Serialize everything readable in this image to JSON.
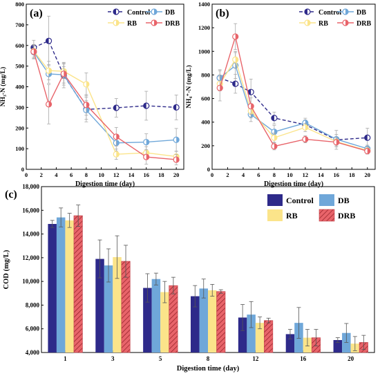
{
  "colors": {
    "control": "#2e2a8a",
    "db": "#6fa7d9",
    "rb": "#fbe48a",
    "drb": "#e8646a",
    "error": "#a8a8a8"
  },
  "chart_data": [
    {
      "panel_label": "(a)",
      "type": "line",
      "xlabel": "Digestion time (day)",
      "ylabel": "NH₃-N (mg/L)",
      "xlim": [
        0,
        21
      ],
      "ylim": [
        0,
        800
      ],
      "xticks": [
        "0",
        "2",
        "4",
        "6",
        "8",
        "10",
        "12",
        "14",
        "16",
        "18",
        "20"
      ],
      "yticks": [
        "0",
        "100",
        "200",
        "300",
        "400",
        "500",
        "600",
        "700",
        "800"
      ],
      "legend": [
        "Control",
        "DB",
        "RB",
        "DRB"
      ],
      "series": [
        {
          "name": "Control",
          "color": "#2e2a8a",
          "dashed": true,
          "x": [
            1,
            3,
            5,
            8,
            12,
            16,
            20
          ],
          "y": [
            590,
            622,
            455,
            290,
            298,
            308,
            300
          ],
          "err": [
            35,
            120,
            60,
            60,
            45,
            70,
            60
          ]
        },
        {
          "name": "DB",
          "color": "#6fa7d9",
          "dashed": false,
          "x": [
            1,
            3,
            5,
            8,
            12,
            16,
            20
          ],
          "y": [
            568,
            462,
            458,
            287,
            128,
            132,
            143
          ],
          "err": [
            30,
            45,
            40,
            45,
            40,
            40,
            55
          ]
        },
        {
          "name": "RB",
          "color": "#fbe48a",
          "dashed": false,
          "x": [
            1,
            3,
            5,
            8,
            12,
            16,
            20
          ],
          "y": [
            573,
            478,
            475,
            412,
            73,
            80,
            62
          ],
          "err": [
            30,
            45,
            35,
            55,
            25,
            30,
            25
          ]
        },
        {
          "name": "DRB",
          "color": "#e8646a",
          "dashed": false,
          "x": [
            1,
            3,
            5,
            8,
            12,
            16,
            20
          ],
          "y": [
            570,
            315,
            463,
            312,
            158,
            60,
            47
          ],
          "err": [
            35,
            95,
            55,
            50,
            45,
            35,
            25
          ]
        }
      ]
    },
    {
      "panel_label": "(b)",
      "type": "line",
      "xlabel": "Digestion time (day)",
      "ylabel": "NH₄⁺-N (mg/L)",
      "xlim": [
        0,
        21
      ],
      "ylim": [
        0,
        1400
      ],
      "xticks": [
        "0",
        "2",
        "4",
        "6",
        "8",
        "10",
        "12",
        "14",
        "16",
        "18",
        "20"
      ],
      "yticks": [
        "0",
        "200",
        "400",
        "600",
        "800",
        "1000",
        "1200",
        "1400"
      ],
      "legend": [
        "Control",
        "DB",
        "RB",
        "DRB"
      ],
      "series": [
        {
          "name": "Control",
          "color": "#2e2a8a",
          "dashed": true,
          "x": [
            1,
            3,
            5,
            8,
            12,
            16,
            20
          ],
          "y": [
            775,
            725,
            655,
            435,
            378,
            250,
            268
          ],
          "err": [
            60,
            80,
            110,
            50,
            40,
            80,
            80
          ]
        },
        {
          "name": "DB",
          "color": "#6fa7d9",
          "dashed": false,
          "x": [
            1,
            3,
            5,
            8,
            12,
            16,
            20
          ],
          "y": [
            775,
            880,
            465,
            318,
            393,
            255,
            175
          ],
          "err": [
            70,
            110,
            60,
            55,
            40,
            40,
            30
          ]
        },
        {
          "name": "RB",
          "color": "#fbe48a",
          "dashed": false,
          "x": [
            1,
            3,
            5,
            8,
            12,
            16,
            20
          ],
          "y": [
            725,
            930,
            495,
            268,
            355,
            235,
            160
          ],
          "err": [
            60,
            70,
            60,
            40,
            35,
            35,
            30
          ]
        },
        {
          "name": "DRB",
          "color": "#e8646a",
          "dashed": false,
          "x": [
            1,
            3,
            5,
            8,
            12,
            16,
            20
          ],
          "y": [
            690,
            1125,
            535,
            195,
            255,
            230,
            155
          ],
          "err": [
            110,
            110,
            70,
            30,
            30,
            40,
            25
          ]
        }
      ]
    },
    {
      "panel_label": "(c)",
      "type": "bar",
      "xlabel": "Digestion time (day)",
      "ylabel": "COD (mg/L)",
      "ylim": [
        4000,
        18000
      ],
      "yticks": [
        "4,000",
        "6,000",
        "8,000",
        "10,000",
        "12,000",
        "14,000",
        "16,000",
        "18,000"
      ],
      "categories": [
        "1",
        "3",
        "5",
        "8",
        "12",
        "16",
        "20"
      ],
      "legend": [
        "Control",
        "DB",
        "RB",
        "DRB"
      ],
      "series": [
        {
          "name": "Control",
          "color": "#2e2a8a",
          "values": [
            14850,
            11900,
            9450,
            8750,
            6950,
            5550,
            5050
          ],
          "err": [
            300,
            1600,
            1200,
            900,
            1100,
            400,
            200
          ]
        },
        {
          "name": "DB",
          "color": "#6fa7d9",
          "values": [
            15400,
            11350,
            10200,
            9400,
            7200,
            6500,
            5650
          ],
          "err": [
            800,
            1400,
            500,
            800,
            1100,
            1300,
            800
          ]
        },
        {
          "name": "RB",
          "color": "#fbe48a",
          "values": [
            15150,
            12050,
            9100,
            9250,
            6500,
            5250,
            4750
          ],
          "err": [
            600,
            1800,
            900,
            500,
            500,
            700,
            600
          ]
        },
        {
          "name": "DRB",
          "color": "#e8646a",
          "values": [
            15550,
            11700,
            9650,
            9150,
            6700,
            5250,
            4850
          ],
          "err": [
            900,
            1350,
            700,
            150,
            200,
            700,
            600
          ]
        }
      ]
    }
  ]
}
